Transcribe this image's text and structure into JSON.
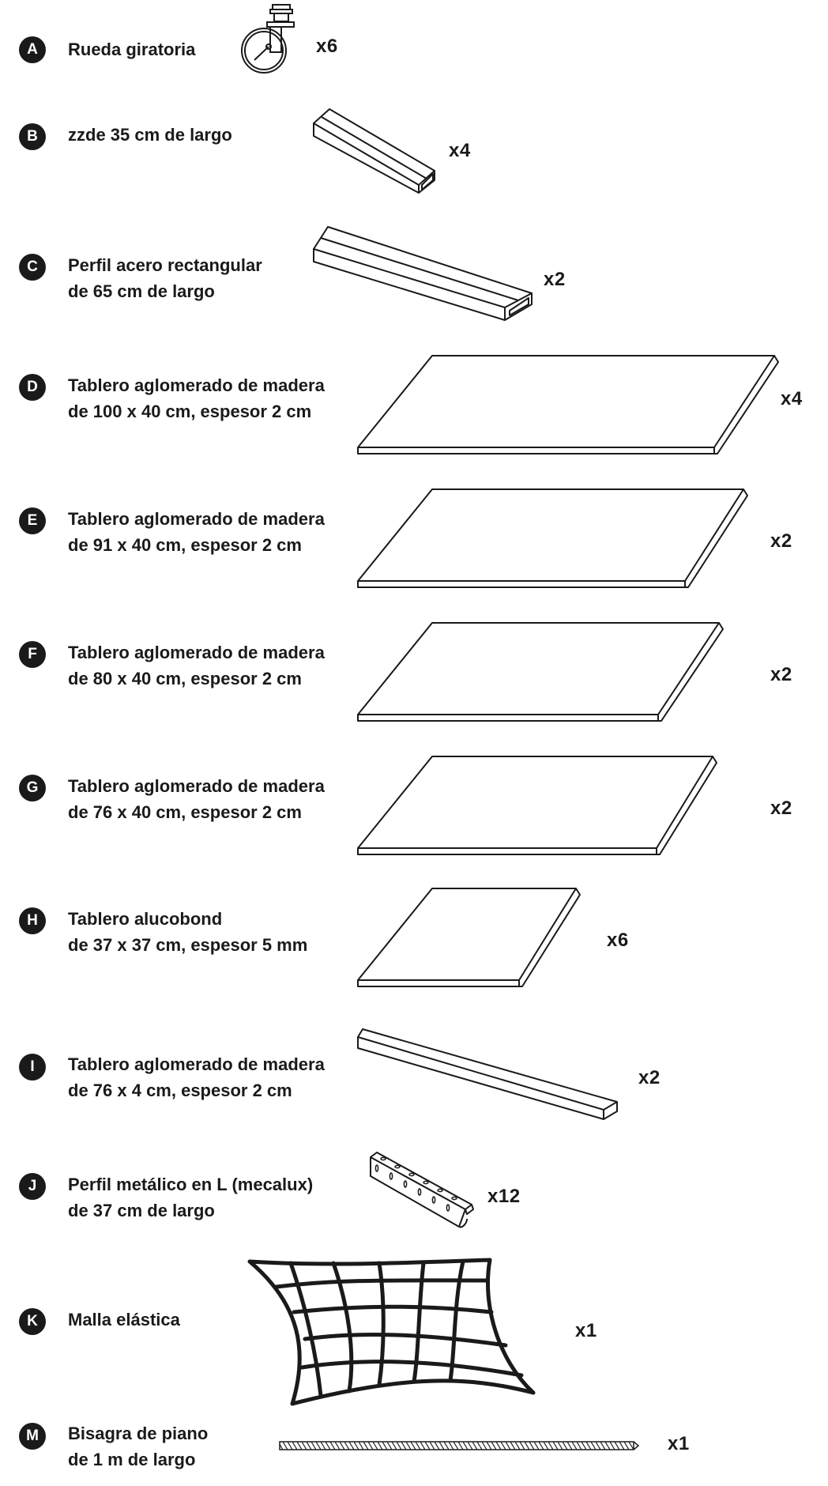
{
  "parts": [
    {
      "letter": "A",
      "lines": [
        "Rueda giratoria"
      ],
      "qty": "x6",
      "icon": "swivel-caster-icon"
    },
    {
      "letter": "B",
      "lines": [
        "zzde 35 cm de largo"
      ],
      "qty": "x4",
      "icon": "rectangular-tube-short-icon"
    },
    {
      "letter": "C",
      "lines": [
        "Perfil acero rectangular",
        "de 65 cm de largo"
      ],
      "qty": "x2",
      "icon": "rectangular-tube-long-icon"
    },
    {
      "letter": "D",
      "lines": [
        "Tablero aglomerado de madera",
        "de 100 x 40 cm, espesor 2 cm"
      ],
      "qty": "x4",
      "icon": "wood-board-icon"
    },
    {
      "letter": "E",
      "lines": [
        "Tablero aglomerado de madera",
        "de 91 x 40 cm, espesor 2 cm"
      ],
      "qty": "x2",
      "icon": "wood-board-icon"
    },
    {
      "letter": "F",
      "lines": [
        "Tablero aglomerado de madera",
        "de 80 x 40 cm, espesor 2 cm"
      ],
      "qty": "x2",
      "icon": "wood-board-icon"
    },
    {
      "letter": "G",
      "lines": [
        "Tablero aglomerado de madera",
        "de 76 x 40 cm, espesor 2 cm"
      ],
      "qty": "x2",
      "icon": "wood-board-icon"
    },
    {
      "letter": "H",
      "lines": [
        "Tablero alucobond",
        "de 37 x 37 cm, espesor 5 mm"
      ],
      "qty": "x6",
      "icon": "alucobond-panel-icon"
    },
    {
      "letter": "I",
      "lines": [
        "Tablero aglomerado de madera",
        "de 76 x 4 cm, espesor 2 cm"
      ],
      "qty": "x2",
      "icon": "wood-strip-icon"
    },
    {
      "letter": "J",
      "lines": [
        "Perfil metálico en L (mecalux)",
        "de 37 cm de largo"
      ],
      "qty": "x12",
      "icon": "slotted-angle-profile-icon"
    },
    {
      "letter": "K",
      "lines": [
        "Malla elástica"
      ],
      "qty": "x1",
      "icon": "elastic-net-icon"
    },
    {
      "letter": "M",
      "lines": [
        "Bisagra de piano",
        "de 1 m de largo"
      ],
      "qty": "x1",
      "icon": "piano-hinge-icon"
    }
  ],
  "colors": {
    "ink": "#1a1a1a",
    "background": "#ffffff"
  }
}
